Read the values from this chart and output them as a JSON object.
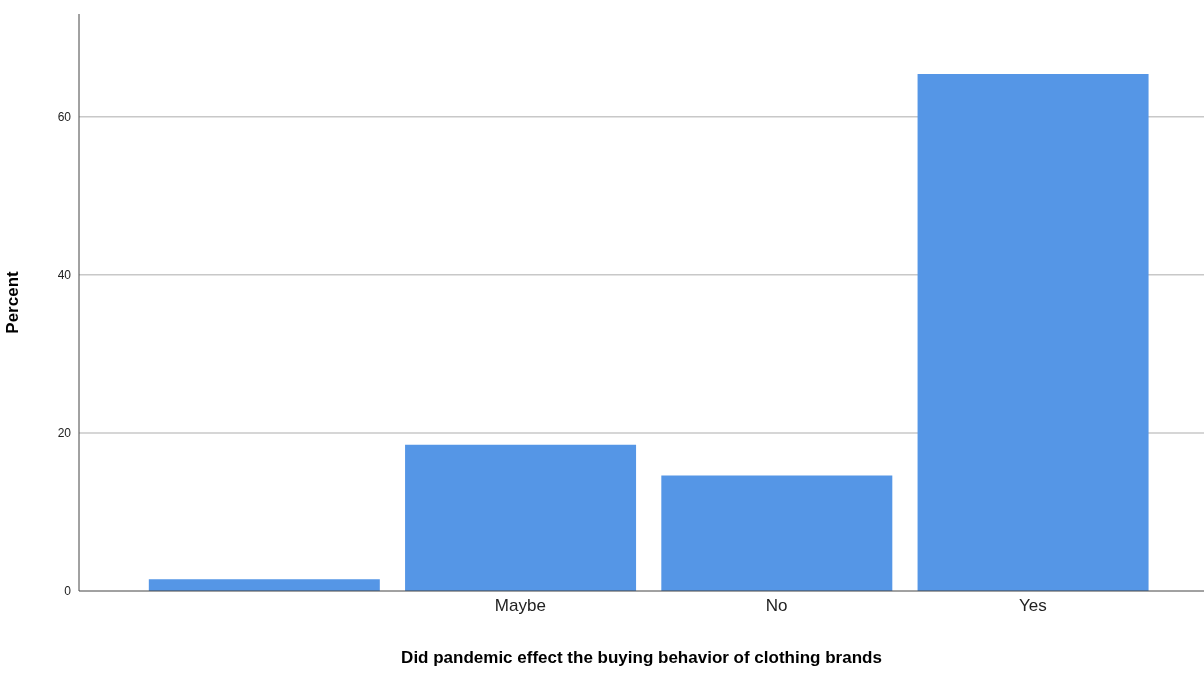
{
  "chart_data": {
    "type": "bar",
    "xlabel": "Did pandemic effect the buying behavior of clothing brands",
    "ylabel": "Percent",
    "categories": [
      null,
      "Maybe",
      "No",
      "Yes"
    ],
    "values": [
      1.5,
      18.5,
      14.6,
      65.4
    ],
    "color": "#5596e6",
    "ylim": [
      0,
      73
    ],
    "yticks": [
      0,
      20,
      40,
      60
    ],
    "grid": "y"
  }
}
